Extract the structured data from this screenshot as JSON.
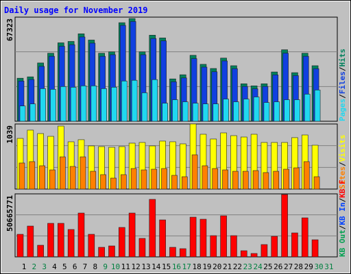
{
  "chart_data": [
    {
      "type": "bar",
      "title": "Daily usage for November 2019",
      "ylim": [
        0,
        67323
      ],
      "yticks": [
        67323
      ],
      "grid": true,
      "legend_separator": "/",
      "series": [
        {
          "name": "Hits",
          "color": "#00805c",
          "values": [
            27827,
            28725,
            37700,
            43985,
            50717,
            51614,
            56552,
            52512,
            43985,
            44882,
            63732,
            66425,
            44882,
            55654,
            53858,
            27378,
            30071,
            42638,
            36803,
            34111,
            40844,
            35906,
            24237,
            22890,
            24237,
            31867,
            46228,
            31418,
            43985,
            35906,
            null
          ]
        },
        {
          "name": "Files",
          "color": "#1040e0",
          "values": [
            26000,
            27000,
            35500,
            42000,
            48500,
            49500,
            54500,
            50500,
            42000,
            43000,
            62000,
            64500,
            43000,
            53500,
            52000,
            25500,
            28000,
            40500,
            35000,
            32000,
            39000,
            34000,
            22500,
            21000,
            22500,
            30000,
            44000,
            29500,
            42000,
            34000,
            null
          ]
        },
        {
          "name": "Pages",
          "color": "#20d8f0",
          "values": [
            9875,
            11220,
            21094,
            20645,
            22441,
            21991,
            22889,
            22889,
            21094,
            21991,
            26031,
            26480,
            18401,
            26929,
            11669,
            13913,
            12567,
            11669,
            11220,
            11220,
            14362,
            12567,
            14362,
            15708,
            12118,
            12567,
            13913,
            13913,
            17504,
            20196,
            null
          ]
        }
      ]
    },
    {
      "type": "bar",
      "ylim": [
        0,
        1039
      ],
      "yticks": [
        1039
      ],
      "grid": true,
      "legend_separator": "/",
      "series": [
        {
          "name": "Visits",
          "color": "#ffff00",
          "values": [
            809,
            941,
            886,
            842,
            1006,
            755,
            788,
            689,
            678,
            667,
            678,
            733,
            744,
            689,
            766,
            755,
            722,
            1039,
            875,
            799,
            897,
            853,
            831,
            875,
            744,
            744,
            744,
            821,
            864,
            700,
            null
          ]
        },
        {
          "name": "Sites",
          "color": "#ff8000",
          "values": [
            416,
            438,
            372,
            306,
            514,
            361,
            514,
            284,
            230,
            175,
            230,
            328,
            306,
            317,
            328,
            219,
            197,
            547,
            372,
            328,
            306,
            284,
            284,
            295,
            263,
            284,
            317,
            339,
            438,
            197,
            null
          ]
        }
      ]
    },
    {
      "type": "bar",
      "ylim": [
        0,
        50665771
      ],
      "yticks": [
        50665771
      ],
      "grid": true,
      "legend_separator": "/",
      "categories": [
        1,
        2,
        3,
        4,
        5,
        6,
        7,
        8,
        9,
        10,
        11,
        12,
        13,
        14,
        15,
        16,
        17,
        18,
        19,
        20,
        21,
        22,
        23,
        24,
        25,
        26,
        27,
        28,
        29,
        30,
        31
      ],
      "category_colors": [
        "#000000",
        "#008040",
        "#008040",
        "#000000",
        "#000000",
        "#000000",
        "#000000",
        "#000000",
        "#008040",
        "#008040",
        "#000000",
        "#000000",
        "#000000",
        "#000000",
        "#000000",
        "#008040",
        "#008040",
        "#000000",
        "#000000",
        "#000000",
        "#000000",
        "#000000",
        "#008040",
        "#008040",
        "#000000",
        "#000000",
        "#000000",
        "#000000",
        "#000000",
        "#008040",
        "#008040"
      ],
      "series": [
        {
          "name": "KB F",
          "color": "#ff0000",
          "values": [
            18173595,
            24782175,
            9362155,
            26985035,
            26985035,
            22028600,
            35245760,
            18173595,
            7710010,
            8811440,
            23680745,
            35245760,
            14869305,
            46260060,
            29738610,
            7710010,
            6608580,
            31941470,
            30289325,
            17072165,
            33042900,
            17072165,
            4956435,
            2753575,
            9912870,
            16521450,
            50115065,
            19275025,
            31390755,
            13767875,
            null
          ]
        },
        {
          "name": "KB In",
          "color": "#0040ff",
          "values": [
            null,
            null,
            null,
            null,
            null,
            null,
            null,
            null,
            null,
            null,
            null,
            null,
            null,
            null,
            null,
            null,
            null,
            null,
            null,
            null,
            null,
            null,
            null,
            null,
            null,
            null,
            null,
            null,
            null,
            null,
            null
          ]
        },
        {
          "name": "KB Out",
          "color": "#00a050",
          "values": [
            null,
            null,
            null,
            null,
            null,
            null,
            null,
            null,
            null,
            null,
            null,
            null,
            null,
            null,
            null,
            null,
            null,
            null,
            null,
            null,
            null,
            null,
            null,
            null,
            null,
            null,
            null,
            null,
            null,
            null,
            null
          ]
        }
      ]
    }
  ]
}
